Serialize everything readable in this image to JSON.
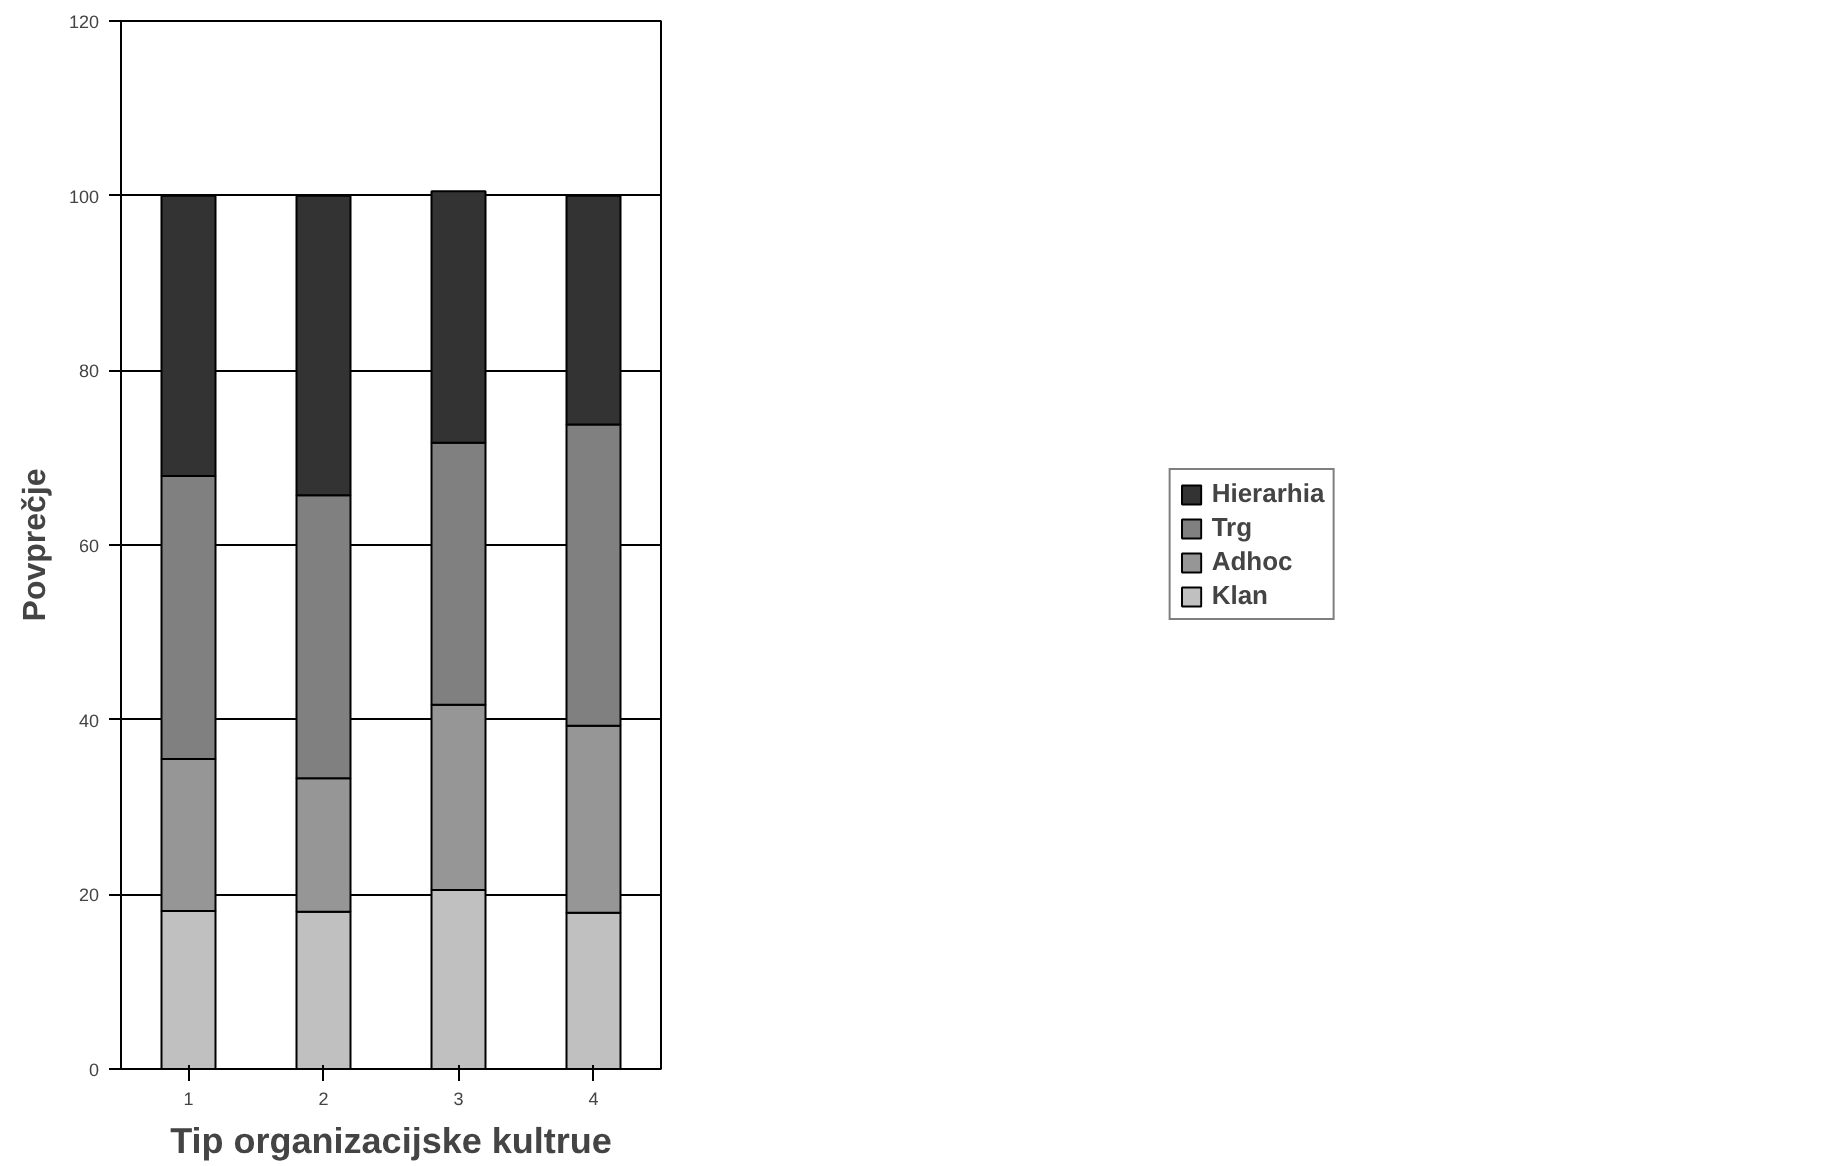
{
  "chart_data": {
    "type": "bar",
    "stacked": true,
    "categories": [
      "1",
      "2",
      "3",
      "4"
    ],
    "xlabel": "Tip organizacijske kultrue",
    "ylabel": "Povprečje",
    "ylim": [
      0,
      120
    ],
    "yticks": [
      0,
      20,
      40,
      60,
      80,
      100,
      120
    ],
    "grid": "y",
    "legend": "right",
    "series": [
      {
        "name": "Klan",
        "color": "#c0c0c0",
        "values": [
          18.1,
          18,
          20.5,
          17.9
        ]
      },
      {
        "name": "Adhoc",
        "color": "#969696",
        "values": [
          17.4,
          15.3,
          21.2,
          21.4
        ]
      },
      {
        "name": "Trg",
        "color": "#808080",
        "values": [
          32.4,
          32.4,
          30,
          34.5
        ]
      },
      {
        "name": "Hierarhia",
        "color": "#333333",
        "values": [
          32.1,
          34.3,
          28.8,
          26.2
        ]
      }
    ]
  }
}
